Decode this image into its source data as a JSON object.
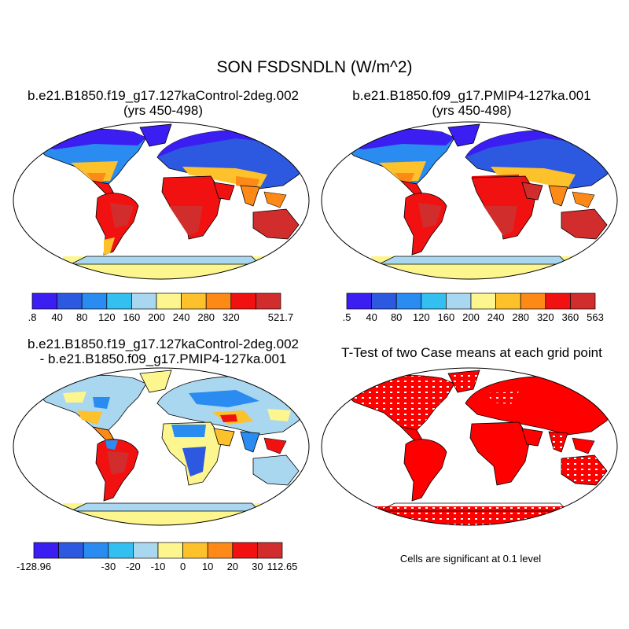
{
  "title": "SON FSDSNDLN (W/m^2)",
  "panels": {
    "top_left": {
      "title_line1": "b.e21.B1850.f19_g17.127kaControl-2deg.002",
      "title_line2": "(yrs 450-498)"
    },
    "top_right": {
      "title_line1": "b.e21.B1850.f09_g17.PMIP4-127ka.001",
      "title_line2": "(yrs 450-498)"
    },
    "bottom_left": {
      "title_line1": "b.e21.B1850.f19_g17.127kaControl-2deg.002",
      "title_line2": "- b.e21.B1850.f09_g17.PMIP4-127ka.001"
    },
    "bottom_right": {
      "title_line1": "T-Test of two Case means at each grid point"
    }
  },
  "colorbars": {
    "top_left": {
      "labels": [
        ".8",
        "40",
        "80",
        "120",
        "160",
        "200",
        "240",
        "280",
        "320",
        "521.7"
      ]
    },
    "top_right": {
      "labels": [
        ".5",
        "40",
        "80",
        "120",
        "160",
        "200",
        "240",
        "280",
        "320",
        "360",
        "563"
      ]
    },
    "bottom_left": {
      "labels": [
        "-128.96",
        "-30",
        "-20",
        "-10",
        "0",
        "10",
        "20",
        "30",
        "112.65"
      ]
    }
  },
  "colors": {
    "palette": [
      "#3b1ff2",
      "#2d58e0",
      "#2a8cf0",
      "#33bff0",
      "#a9d7f0",
      "#fdf68e",
      "#fdc12b",
      "#fd8a17",
      "#f21111",
      "#d12d2d"
    ],
    "significant": "#ff0000",
    "land": "#ffffff",
    "coast": "#000000"
  },
  "note": "Cells are significant at 0.1 level"
}
